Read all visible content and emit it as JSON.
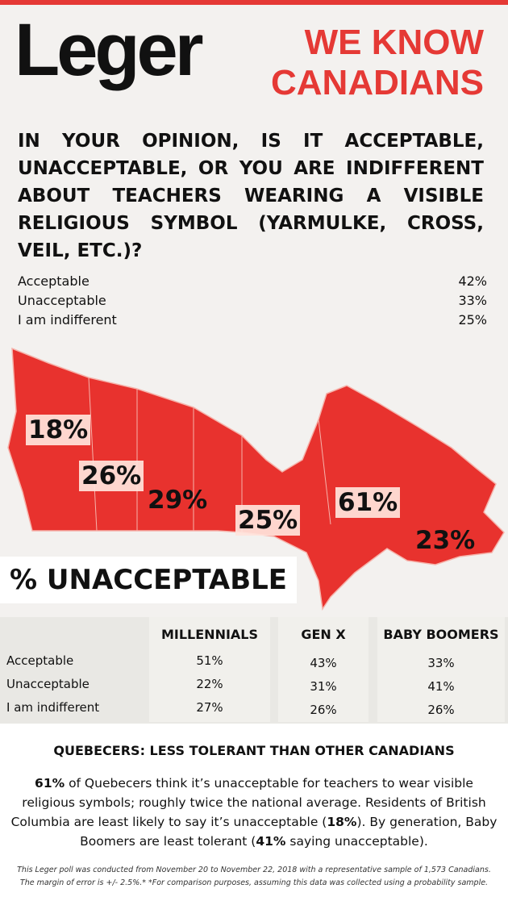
{
  "header": {
    "logo": "Leger",
    "tagline": [
      "WE KNOW",
      "CANADIANS"
    ]
  },
  "question": "IN YOUR OPINION, IS IT ACCEPTABLE, UNACCEPTABLE, OR YOU ARE INDIFFERENT ABOUT TEACHERS WEARING A VISIBLE RELIGIOUS SYMBOL (YARMULKE, CROSS, VEIL, ETC.)?",
  "results": [
    {
      "label": "Acceptable",
      "value": "42%"
    },
    {
      "label": "Unacceptable",
      "value": "33%"
    },
    {
      "label": "I am indifferent",
      "value": "25%"
    }
  ],
  "map": {
    "labels": [
      "18%",
      "26%",
      "29%",
      "25%",
      "61%",
      "23%"
    ],
    "caption": "% UNACCEPTABLE"
  },
  "generations": {
    "columns": [
      "MILLENNIALS",
      "GEN X",
      "BABY BOOMERS"
    ],
    "rows": [
      {
        "label": "Acceptable",
        "values": [
          "51%",
          "43%",
          "33%"
        ]
      },
      {
        "label": "Unacceptable",
        "values": [
          "22%",
          "31%",
          "41%"
        ]
      },
      {
        "label": "I am indifferent",
        "values": [
          "27%",
          "26%",
          "26%"
        ]
      }
    ]
  },
  "summary": {
    "heading": "QUEBECERS: LESS TOLERANT THAN OTHER CANADIANS",
    "paragraph": [
      "61%",
      " of Quebecers think it’s unacceptable for teachers to wear visible religious symbols; roughly twice the national average. Residents of British Columbia are least likely to say it’s unacceptable (",
      "18%",
      "). By generation, Baby Boomers are least tolerant (",
      "41%",
      " saying unacceptable)."
    ]
  },
  "footnote": [
    "This Leger poll was conducted from November 20 to November 22, 2018 with a representative sample of 1,573 Canadians.",
    "The margin of error is +/- 2.5%.* *For comparison purposes, assuming this data was collected using a probability sample."
  ]
}
